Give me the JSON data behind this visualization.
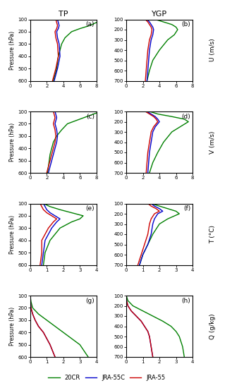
{
  "title_left": "TP",
  "title_right": "YGP",
  "row_labels": [
    "U (m/s)",
    "V (m/s)",
    "T (°C)",
    "Q (g/kg)"
  ],
  "panel_labels": [
    [
      "(a)",
      "(b)"
    ],
    [
      "(c)",
      "(d)"
    ],
    [
      "(e)",
      "(f)"
    ],
    [
      "(g)",
      "(h)"
    ]
  ],
  "colors": {
    "20CR": "#008000",
    "JRA-55C": "#0000cc",
    "JRA-55": "#cc0000"
  },
  "legend_labels": [
    "20CR",
    "JRA-55C",
    "JRA-55"
  ],
  "background": "#ffffff",
  "U_TP_pressure": [
    100,
    125,
    150,
    175,
    200,
    250,
    300,
    400,
    500,
    600
  ],
  "U_TP_20CR": [
    8.5,
    8.0,
    7.2,
    6.0,
    5.0,
    4.2,
    3.8,
    3.4,
    3.2,
    2.8
  ],
  "U_TP_JRA55C": [
    3.3,
    3.4,
    3.5,
    3.4,
    3.2,
    3.3,
    3.5,
    3.6,
    3.3,
    2.9
  ],
  "U_TP_JRA55": [
    3.1,
    3.2,
    3.3,
    3.2,
    3.0,
    3.1,
    3.3,
    3.4,
    3.1,
    2.7
  ],
  "U_YGP_pressure": [
    100,
    125,
    150,
    175,
    200,
    250,
    300,
    400,
    500,
    600,
    700
  ],
  "U_YGP_20CR": [
    3.5,
    4.5,
    5.5,
    6.0,
    6.2,
    5.8,
    5.0,
    4.0,
    3.2,
    2.8,
    2.5
  ],
  "U_YGP_JRA55C": [
    2.5,
    2.8,
    3.0,
    3.2,
    3.3,
    3.2,
    3.0,
    2.8,
    2.7,
    2.6,
    2.5
  ],
  "U_YGP_JRA55": [
    2.3,
    2.6,
    2.8,
    3.0,
    3.1,
    3.0,
    2.8,
    2.6,
    2.5,
    2.4,
    2.3
  ],
  "V_TP_pressure": [
    100,
    125,
    150,
    175,
    200,
    250,
    300,
    350,
    400,
    450,
    500,
    600
  ],
  "V_TP_20CR": [
    8.5,
    7.5,
    6.5,
    5.5,
    4.5,
    3.8,
    3.2,
    2.8,
    2.6,
    2.4,
    2.3,
    2.1
  ],
  "V_TP_JRA55C": [
    3.0,
    3.1,
    3.2,
    3.1,
    3.0,
    3.2,
    3.3,
    3.2,
    3.0,
    2.8,
    2.6,
    2.2
  ],
  "V_TP_JRA55": [
    2.8,
    2.9,
    3.0,
    2.9,
    2.8,
    3.0,
    3.1,
    3.0,
    2.8,
    2.6,
    2.4,
    2.0
  ],
  "V_YGP_pressure": [
    100,
    125,
    150,
    175,
    200,
    250,
    300,
    400,
    500,
    600,
    700
  ],
  "V_YGP_20CR": [
    2.8,
    3.8,
    5.5,
    7.0,
    7.5,
    6.5,
    5.5,
    4.5,
    3.8,
    3.2,
    2.8
  ],
  "V_YGP_JRA55C": [
    2.5,
    3.0,
    3.5,
    3.8,
    4.0,
    3.5,
    3.2,
    3.0,
    2.8,
    2.7,
    2.6
  ],
  "V_YGP_JRA55": [
    2.3,
    2.8,
    3.3,
    3.6,
    3.8,
    3.3,
    3.0,
    2.8,
    2.6,
    2.5,
    2.4
  ],
  "T_TP_pressure": [
    100,
    125,
    150,
    175,
    200,
    225,
    250,
    300,
    350,
    400,
    500,
    600
  ],
  "T_TP_20CR": [
    0.8,
    1.2,
    1.8,
    2.5,
    3.2,
    3.0,
    2.5,
    1.8,
    1.5,
    1.2,
    0.9,
    0.8
  ],
  "T_TP_JRA55C": [
    0.8,
    0.9,
    1.0,
    1.2,
    1.5,
    1.8,
    1.6,
    1.3,
    1.1,
    0.9,
    0.8,
    0.7
  ],
  "T_TP_JRA55": [
    0.6,
    0.7,
    0.8,
    1.0,
    1.3,
    1.6,
    1.4,
    1.1,
    0.9,
    0.7,
    0.7,
    0.6
  ],
  "T_YGP_pressure": [
    100,
    125,
    150,
    175,
    200,
    250,
    300,
    400,
    500,
    600,
    700
  ],
  "T_YGP_20CR": [
    1.5,
    2.0,
    2.5,
    3.0,
    3.2,
    2.5,
    2.0,
    1.6,
    1.3,
    1.0,
    0.8
  ],
  "T_YGP_JRA55C": [
    1.5,
    1.7,
    2.0,
    2.2,
    1.9,
    1.7,
    1.6,
    1.5,
    1.3,
    1.0,
    0.8
  ],
  "T_YGP_JRA55": [
    1.3,
    1.5,
    1.8,
    2.0,
    1.7,
    1.5,
    1.4,
    1.3,
    1.1,
    0.9,
    0.7
  ],
  "Q_TP_pressure": [
    100,
    150,
    200,
    250,
    300,
    350,
    400,
    450,
    500,
    600
  ],
  "Q_TP_20CR": [
    0.0,
    0.05,
    0.15,
    0.5,
    1.0,
    1.5,
    2.0,
    2.5,
    3.0,
    3.5
  ],
  "Q_TP_JRA55C": [
    0.0,
    0.02,
    0.05,
    0.15,
    0.3,
    0.5,
    0.8,
    1.0,
    1.2,
    1.5
  ],
  "Q_TP_JRA55": [
    0.0,
    0.02,
    0.05,
    0.15,
    0.3,
    0.5,
    0.8,
    1.0,
    1.2,
    1.5
  ],
  "Q_YGP_pressure": [
    100,
    150,
    200,
    250,
    300,
    350,
    400,
    450,
    500,
    600,
    700
  ],
  "Q_YGP_20CR": [
    0.0,
    0.1,
    0.4,
    1.0,
    1.6,
    2.2,
    2.7,
    3.0,
    3.2,
    3.4,
    3.5
  ],
  "Q_YGP_JRA55C": [
    0.0,
    0.02,
    0.1,
    0.3,
    0.6,
    0.9,
    1.1,
    1.3,
    1.4,
    1.5,
    1.6
  ],
  "Q_YGP_JRA55": [
    0.0,
    0.02,
    0.1,
    0.3,
    0.6,
    0.9,
    1.1,
    1.3,
    1.4,
    1.5,
    1.6
  ]
}
